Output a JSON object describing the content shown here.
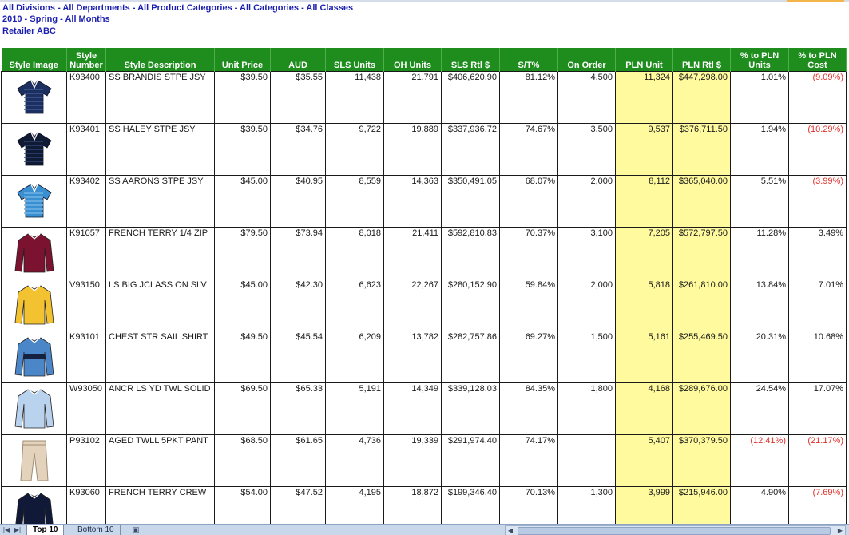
{
  "header": {
    "line1": "All Divisions - All Departments - All Product Categories - All Categories - All Classes",
    "line2": "2010 - Spring - All Months",
    "line3": "Retailer ABC"
  },
  "columns": [
    "Style Image",
    "Style Number",
    "Style Description",
    "Unit Price",
    "AUD",
    "SLS Units",
    "OH Units",
    "SLS Rtl $",
    "S/T%",
    "On Order",
    "PLN Unit",
    "PLN Rtl $",
    "% to PLN Units",
    "% to PLN Cost"
  ],
  "rows": [
    {
      "image": {
        "icon": "navy-striped-polo-icon",
        "kind": "polo",
        "color": "#1c2f5e",
        "stripe": "#3b5a9c"
      },
      "style": "K93400",
      "desc": "SS BRANDIS STPE JSY",
      "price": "$39.50",
      "aud": "$35.55",
      "sls_units": "11,438",
      "oh_units": "21,791",
      "sls_rtl": "$406,620.90",
      "st": "81.12%",
      "on_order": "4,500",
      "pln_unit": "11,324",
      "pln_rtl": "$447,298.00",
      "pct_units": "1.01%",
      "pct_units_neg": false,
      "pct_cost": "(9.09%)",
      "pct_cost_neg": true
    },
    {
      "image": {
        "icon": "dark-striped-polo-icon",
        "kind": "polo",
        "color": "#111a33",
        "stripe": "#2c4378"
      },
      "style": "K93401",
      "desc": "SS HALEY STPE JSY",
      "price": "$39.50",
      "aud": "$34.76",
      "sls_units": "9,722",
      "oh_units": "19,889",
      "sls_rtl": "$337,936.72",
      "st": "74.67%",
      "on_order": "3,500",
      "pln_unit": "9,537",
      "pln_rtl": "$376,711.50",
      "pct_units": "1.94%",
      "pct_units_neg": false,
      "pct_cost": "(10.29%)",
      "pct_cost_neg": true
    },
    {
      "image": {
        "icon": "blue-striped-polo-icon",
        "kind": "polo",
        "color": "#3a8fd0",
        "stripe": "#6fb3e6"
      },
      "style": "K93402",
      "desc": "SS AARONS STPE JSY",
      "price": "$45.00",
      "aud": "$40.95",
      "sls_units": "8,559",
      "oh_units": "14,363",
      "sls_rtl": "$350,491.05",
      "st": "68.07%",
      "on_order": "2,000",
      "pln_unit": "8,112",
      "pln_rtl": "$365,040.00",
      "pct_units": "5.51%",
      "pct_units_neg": false,
      "pct_cost": "(3.99%)",
      "pct_cost_neg": true
    },
    {
      "image": {
        "icon": "maroon-zip-pullover-icon",
        "kind": "longsleeve",
        "color": "#7a1230",
        "stripe": "#7a1230"
      },
      "style": "K91057",
      "desc": "FRENCH TERRY 1/4 ZIP",
      "price": "$79.50",
      "aud": "$73.94",
      "sls_units": "8,018",
      "oh_units": "21,411",
      "sls_rtl": "$592,810.83",
      "st": "70.37%",
      "on_order": "3,100",
      "pln_unit": "7,205",
      "pln_rtl": "$572,797.50",
      "pct_units": "11.28%",
      "pct_units_neg": false,
      "pct_cost": "3.49%",
      "pct_cost_neg": false
    },
    {
      "image": {
        "icon": "yellow-sweater-icon",
        "kind": "longsleeve",
        "color": "#f2c230",
        "stripe": "#f2c230"
      },
      "style": "V93150",
      "desc": "LS BIG JCLASS ON SLV",
      "price": "$45.00",
      "aud": "$42.30",
      "sls_units": "6,623",
      "oh_units": "22,267",
      "sls_rtl": "$280,152.90",
      "st": "59.84%",
      "on_order": "2,000",
      "pln_unit": "5,818",
      "pln_rtl": "$261,810.00",
      "pct_units": "13.84%",
      "pct_units_neg": false,
      "pct_cost": "7.01%",
      "pct_cost_neg": false
    },
    {
      "image": {
        "icon": "blue-chest-stripe-shirt-icon",
        "kind": "longsleeve",
        "color": "#4a86c8",
        "stripe": "#16213f"
      },
      "style": "K93101",
      "desc": "CHEST STR SAIL SHIRT",
      "price": "$49.50",
      "aud": "$45.54",
      "sls_units": "6,209",
      "oh_units": "13,782",
      "sls_rtl": "$282,757.86",
      "st": "69.27%",
      "on_order": "1,500",
      "pln_unit": "5,161",
      "pln_rtl": "$255,469.50",
      "pct_units": "20.31%",
      "pct_units_neg": false,
      "pct_cost": "10.68%",
      "pct_cost_neg": false
    },
    {
      "image": {
        "icon": "light-blue-button-shirt-icon",
        "kind": "longsleeve",
        "color": "#b9d3ef",
        "stripe": "#b9d3ef"
      },
      "style": "W93050",
      "desc": "ANCR LS YD TWL SOLID",
      "price": "$69.50",
      "aud": "$65.33",
      "sls_units": "5,191",
      "oh_units": "14,349",
      "sls_rtl": "$339,128.03",
      "st": "84.35%",
      "on_order": "1,800",
      "pln_unit": "4,168",
      "pln_rtl": "$289,676.00",
      "pct_units": "24.54%",
      "pct_units_neg": false,
      "pct_cost": "17.07%",
      "pct_cost_neg": false
    },
    {
      "image": {
        "icon": "khaki-pants-icon",
        "kind": "pants",
        "color": "#e3d3bd",
        "stripe": "#e3d3bd"
      },
      "style": "P93102",
      "desc": "AGED TWLL 5PKT PANT",
      "price": "$68.50",
      "aud": "$61.65",
      "sls_units": "4,736",
      "oh_units": "19,339",
      "sls_rtl": "$291,974.40",
      "st": "74.17%",
      "on_order": "",
      "pln_unit": "5,407",
      "pln_rtl": "$370,379.50",
      "pct_units": "(12.41%)",
      "pct_units_neg": true,
      "pct_cost": "(21.17%)",
      "pct_cost_neg": true
    },
    {
      "image": {
        "icon": "navy-crew-sweater-icon",
        "kind": "longsleeve",
        "color": "#101a38",
        "stripe": "#101a38"
      },
      "style": "K93060",
      "desc": "FRENCH TERRY CREW",
      "price": "$54.00",
      "aud": "$47.52",
      "sls_units": "4,195",
      "oh_units": "18,872",
      "sls_rtl": "$199,346.40",
      "st": "70.13%",
      "on_order": "1,300",
      "pln_unit": "3,999",
      "pln_rtl": "$215,946.00",
      "pct_units": "4.90%",
      "pct_units_neg": false,
      "pct_cost": "(7.69%)",
      "pct_cost_neg": true
    }
  ],
  "sheet_tabs": {
    "active": "Top 10",
    "other": "Bottom 10"
  },
  "icons": {
    "first_sheet": "first-sheet-icon",
    "prev_sheet": "prev-sheet-icon",
    "next_sheet": "next-sheet-icon",
    "last_sheet": "last-sheet-icon",
    "insert_sheet": "insert-sheet-icon"
  },
  "colors": {
    "header_green": "#1e8d1e",
    "header_text_blue": "#1b1fb0",
    "plan_highlight": "#fffa9e",
    "negative_red": "#e0302a"
  }
}
